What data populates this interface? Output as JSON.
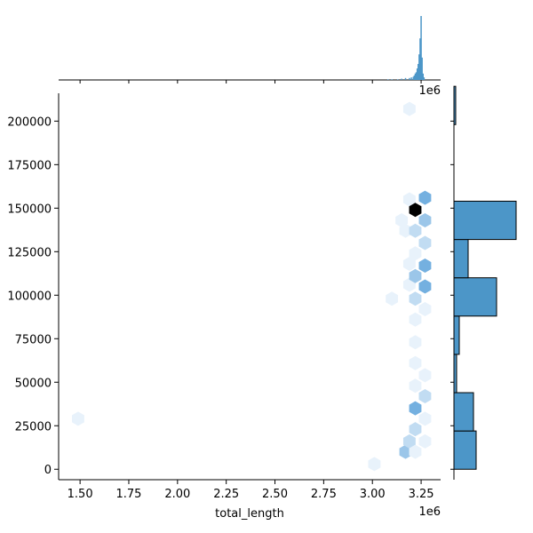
{
  "chart_data": {
    "type": "hexbin_joint",
    "xlabel": "total_length",
    "ylabel": "",
    "x_offset_label": "1e6",
    "top_offset_label": "1e6",
    "xlim": [
      1.39,
      3.35
    ],
    "ylim": [
      -6000,
      216000
    ],
    "x_ticks": [
      1.5,
      1.75,
      2.0,
      2.25,
      2.5,
      2.75,
      3.0,
      3.25
    ],
    "x_tick_labels": [
      "1.50",
      "1.75",
      "2.00",
      "2.25",
      "2.50",
      "2.75",
      "3.00",
      "3.25"
    ],
    "y_ticks": [
      0,
      25000,
      50000,
      75000,
      100000,
      125000,
      150000,
      175000,
      200000
    ],
    "y_tick_labels": [
      "0",
      "25000",
      "50000",
      "75000",
      "100000",
      "125000",
      "150000",
      "175000",
      "200000"
    ],
    "colors": {
      "hex_min": "#e8f2fb",
      "hex_max": "#000000",
      "hex_mid": "#3a8fd3",
      "hist_fill": "#4c96c8",
      "hist_edge": "#000000"
    },
    "hexbins": [
      {
        "x": 1.49,
        "y": 29000,
        "count": 1
      },
      {
        "x": 3.01,
        "y": 3000,
        "count": 1
      },
      {
        "x": 3.1,
        "y": 98000,
        "count": 1
      },
      {
        "x": 3.19,
        "y": 207000,
        "count": 1
      },
      {
        "x": 3.19,
        "y": 155000,
        "count": 1
      },
      {
        "x": 3.15,
        "y": 143000,
        "count": 1
      },
      {
        "x": 3.17,
        "y": 137000,
        "count": 1
      },
      {
        "x": 3.19,
        "y": 118000,
        "count": 1
      },
      {
        "x": 3.19,
        "y": 106000,
        "count": 1
      },
      {
        "x": 3.17,
        "y": 10000,
        "count": 3
      },
      {
        "x": 3.19,
        "y": 16000,
        "count": 2
      },
      {
        "x": 3.22,
        "y": 10000,
        "count": 1
      },
      {
        "x": 3.22,
        "y": 23000,
        "count": 2
      },
      {
        "x": 3.22,
        "y": 35000,
        "count": 4
      },
      {
        "x": 3.22,
        "y": 48000,
        "count": 1
      },
      {
        "x": 3.22,
        "y": 61000,
        "count": 1
      },
      {
        "x": 3.22,
        "y": 73000,
        "count": 1
      },
      {
        "x": 3.22,
        "y": 86000,
        "count": 1
      },
      {
        "x": 3.22,
        "y": 98000,
        "count": 2
      },
      {
        "x": 3.22,
        "y": 111000,
        "count": 3
      },
      {
        "x": 3.22,
        "y": 124000,
        "count": 1
      },
      {
        "x": 3.22,
        "y": 137000,
        "count": 2
      },
      {
        "x": 3.22,
        "y": 149000,
        "count": 10
      },
      {
        "x": 3.27,
        "y": 16000,
        "count": 1
      },
      {
        "x": 3.27,
        "y": 29000,
        "count": 1
      },
      {
        "x": 3.27,
        "y": 42000,
        "count": 2
      },
      {
        "x": 3.27,
        "y": 54000,
        "count": 1
      },
      {
        "x": 3.27,
        "y": 92000,
        "count": 1
      },
      {
        "x": 3.27,
        "y": 105000,
        "count": 4
      },
      {
        "x": 3.27,
        "y": 117000,
        "count": 4
      },
      {
        "x": 3.27,
        "y": 130000,
        "count": 2
      },
      {
        "x": 3.27,
        "y": 143000,
        "count": 3
      },
      {
        "x": 3.27,
        "y": 156000,
        "count": 4
      }
    ],
    "top_hist": {
      "bins": [
        {
          "x": 3.08,
          "density": 0.01
        },
        {
          "x": 3.1,
          "density": 0.01
        },
        {
          "x": 3.13,
          "density": 0.01
        },
        {
          "x": 3.15,
          "density": 0.02
        },
        {
          "x": 3.17,
          "density": 0.03
        },
        {
          "x": 3.19,
          "density": 0.03
        },
        {
          "x": 3.2,
          "density": 0.04
        },
        {
          "x": 3.21,
          "density": 0.05
        },
        {
          "x": 3.215,
          "density": 0.07
        },
        {
          "x": 3.22,
          "density": 0.1
        },
        {
          "x": 3.225,
          "density": 0.12
        },
        {
          "x": 3.23,
          "density": 0.18
        },
        {
          "x": 3.235,
          "density": 0.25
        },
        {
          "x": 3.24,
          "density": 0.4
        },
        {
          "x": 3.245,
          "density": 0.65
        },
        {
          "x": 3.25,
          "density": 1.0
        },
        {
          "x": 3.255,
          "density": 0.35
        },
        {
          "x": 3.26,
          "density": 0.1
        },
        {
          "x": 3.265,
          "density": 0.04
        }
      ]
    },
    "right_hist": {
      "bins": [
        {
          "y0": 0,
          "y1": 22000,
          "count": 25
        },
        {
          "y0": 22000,
          "y1": 44000,
          "count": 22
        },
        {
          "y0": 44000,
          "y1": 66000,
          "count": 3
        },
        {
          "y0": 66000,
          "y1": 88000,
          "count": 6
        },
        {
          "y0": 88000,
          "y1": 110000,
          "count": 48
        },
        {
          "y0": 110000,
          "y1": 132000,
          "count": 16
        },
        {
          "y0": 132000,
          "y1": 154000,
          "count": 70
        },
        {
          "y0": 154000,
          "y1": 176000,
          "count": 0
        },
        {
          "y0": 176000,
          "y1": 198000,
          "count": 0
        },
        {
          "y0": 198000,
          "y1": 220000,
          "count": 2
        }
      ],
      "max_count": 70
    }
  }
}
